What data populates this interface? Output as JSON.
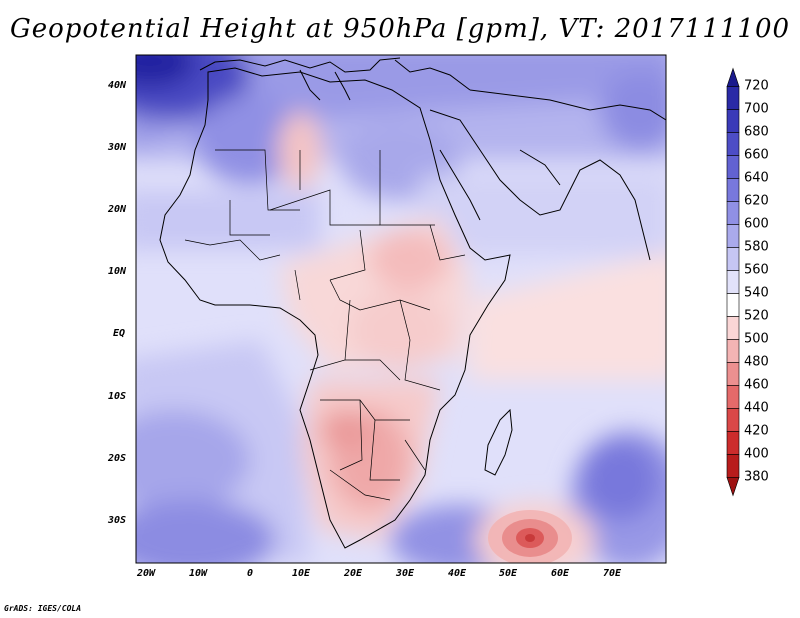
{
  "title": "Geopotential Height at 950hPa [gpm], VT: 2017111100",
  "credit": "GrADS: IGES/COLA",
  "lat_labels": [
    "40N",
    "30N",
    "20N",
    "10N",
    "EQ",
    "10S",
    "20S",
    "30S"
  ],
  "lon_labels": [
    "20W",
    "10W",
    "0",
    "10E",
    "20E",
    "30E",
    "40E",
    "50E",
    "60E",
    "70E"
  ],
  "colorbar": {
    "levels": [
      720,
      700,
      680,
      660,
      640,
      620,
      600,
      580,
      560,
      540,
      520,
      500,
      480,
      460,
      440,
      420,
      400,
      380
    ],
    "colors": [
      "#1a1a8c",
      "#2a2aa6",
      "#3a3ab8",
      "#4d4dc6",
      "#6262d2",
      "#7878dc",
      "#9090e4",
      "#aaaaec",
      "#c6c6f4",
      "#e2e2fa",
      "#ffffff",
      "#fad6d6",
      "#f4b4b4",
      "#ec9090",
      "#e46a6a",
      "#da4848",
      "#cc2c2c",
      "#b81c1c",
      "#9e1212"
    ]
  },
  "map_data": {
    "projection": "lat-lon",
    "lon_range": [
      -22,
      80
    ],
    "lat_range": [
      -37,
      45
    ],
    "variable": "Geopotential Height",
    "level": "950hPa",
    "units": "gpm",
    "valid_time": "2017111100",
    "features": [
      {
        "name": "NW Atlantic high",
        "value": 720
      },
      {
        "name": "SE Indian Ocean low",
        "value": 400
      }
    ]
  }
}
